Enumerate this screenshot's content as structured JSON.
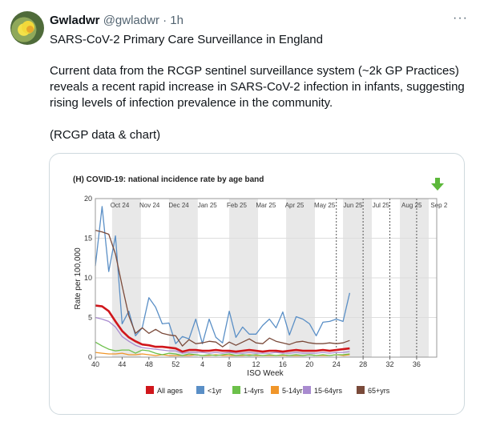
{
  "tweet": {
    "display_name": "Gwladwr",
    "handle": "@gwladwr",
    "separator": "·",
    "time": "1h",
    "more_icon": "ellipsis-icon",
    "paragraph_1": "SARS-CoV-2 Primary Care Surveillance in England",
    "paragraph_2": "Current data from the RCGP sentinel surveillance system (~2k GP Practices) reveals a recent rapid increase in SARS-CoV-2 infection in infants, suggesting rising levels of infection prevalence in the community.",
    "paragraph_3": "(RCGP data & chart)"
  },
  "chart_data": {
    "type": "line",
    "title": "(H) COVID-19: national incidence rate by age band",
    "xlabel": "ISO Week",
    "ylabel": "Rate per 100,000",
    "ylim": [
      0,
      20
    ],
    "yticks": [
      0,
      5,
      10,
      15,
      20
    ],
    "xlim": [
      40,
      38.5
    ],
    "xticks": [
      "40",
      "44",
      "48",
      "52",
      "4",
      "8",
      "12",
      "16",
      "20",
      "24",
      "28",
      "32",
      "36"
    ],
    "month_labels": [
      "Oct 24",
      "Nov 24",
      "Dec 24",
      "Jan 25",
      "Feb 25",
      "Mar 25",
      "Apr 25",
      "May 25",
      "Jun 25",
      "Jul 25",
      "Aug 25",
      "Sep 2"
    ],
    "legend_position": "bottom",
    "grid": true,
    "marker_icon": "green-down-arrow-icon",
    "x_index_weeks": "index 0 = week 40; weeks wrap after 52",
    "series": [
      {
        "name": "All ages",
        "color": "#d0161b",
        "values": [
          6.5,
          6.4,
          5.8,
          4.5,
          3.3,
          2.5,
          2.0,
          1.6,
          1.5,
          1.3,
          1.3,
          1.2,
          1.1,
          0.7,
          0.9,
          0.9,
          0.8,
          0.8,
          0.9,
          0.8,
          0.8,
          0.7,
          0.8,
          0.9,
          0.8,
          0.7,
          0.8,
          0.8,
          0.7,
          0.8,
          0.9,
          0.8,
          0.8,
          0.8,
          0.9,
          0.8,
          0.9,
          1.0,
          1.1
        ]
      },
      {
        "name": "<1yr",
        "color": "#5a8fc6",
        "values": [
          11.5,
          19.0,
          10.8,
          15.3,
          4.2,
          5.8,
          2.7,
          3.7,
          7.5,
          6.3,
          4.2,
          4.3,
          1.7,
          2.6,
          2.3,
          4.8,
          1.7,
          4.8,
          2.5,
          1.8,
          5.8,
          2.5,
          3.8,
          2.9,
          2.9,
          4.0,
          4.8,
          3.7,
          5.7,
          2.8,
          5.1,
          4.8,
          4.2,
          2.7,
          4.4,
          4.5,
          4.8,
          4.5,
          8.1
        ]
      },
      {
        "name": "1-4yrs",
        "color": "#6cc04a",
        "values": [
          1.9,
          1.4,
          1.0,
          0.8,
          0.9,
          0.9,
          0.5,
          0.9,
          0.8,
          0.5,
          0.3,
          0.5,
          0.4,
          0.2,
          0.4,
          0.3,
          0.2,
          0.3,
          0.2,
          0.3,
          0.4,
          0.2,
          0.3,
          0.2,
          0.3,
          0.2,
          0.3,
          0.2,
          0.3,
          0.2,
          0.3,
          0.2,
          0.3,
          0.2,
          0.3,
          0.2,
          0.3,
          0.3,
          0.4
        ]
      },
      {
        "name": "5-14yrs",
        "color": "#f0962a",
        "values": [
          0.6,
          0.5,
          0.4,
          0.4,
          0.5,
          0.3,
          0.3,
          0.4,
          0.3,
          0.2,
          0.3,
          0.2,
          0.2,
          0.2,
          0.2,
          0.3,
          0.2,
          0.2,
          0.3,
          0.2,
          0.2,
          0.2,
          0.2,
          0.3,
          0.2,
          0.2,
          0.2,
          0.2,
          0.2,
          0.2,
          0.2,
          0.2,
          0.3,
          0.2,
          0.2,
          0.2,
          0.3,
          0.2,
          0.3
        ]
      },
      {
        "name": "15-64yrs",
        "color": "#a98bd0",
        "values": [
          5.0,
          4.8,
          4.5,
          3.8,
          2.6,
          2.0,
          1.5,
          1.2,
          1.1,
          1.0,
          0.9,
          0.8,
          0.8,
          0.5,
          0.6,
          0.6,
          0.6,
          0.5,
          0.6,
          0.5,
          0.6,
          0.5,
          0.5,
          0.6,
          0.5,
          0.5,
          0.5,
          0.6,
          0.5,
          0.5,
          0.6,
          0.5,
          0.5,
          0.5,
          0.6,
          0.5,
          0.6,
          0.6,
          0.7
        ]
      },
      {
        "name": "65+yrs",
        "color": "#7a4a3a",
        "values": [
          16.0,
          15.8,
          15.5,
          13.0,
          9.0,
          5.2,
          3.0,
          3.7,
          3.0,
          3.5,
          3.0,
          2.8,
          2.7,
          1.4,
          2.2,
          1.7,
          1.8,
          2.0,
          1.9,
          1.3,
          1.9,
          1.5,
          1.9,
          2.3,
          1.8,
          1.7,
          2.4,
          2.0,
          1.8,
          1.6,
          1.9,
          2.0,
          1.8,
          1.7,
          1.7,
          1.8,
          1.7,
          1.8,
          2.1
        ]
      }
    ]
  }
}
